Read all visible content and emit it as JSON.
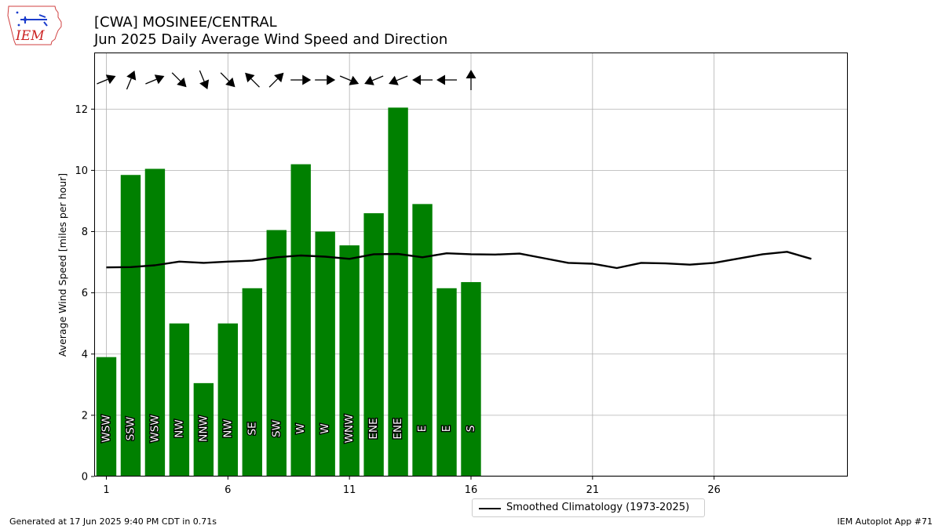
{
  "header": {
    "title_line1": "[CWA] MOSINEE/CENTRAL",
    "title_line2": "Jun 2025 Daily Average Wind Speed and Direction"
  },
  "logo": {
    "text": "IEM",
    "icon": "iowa-state-outline-icon"
  },
  "footer": {
    "left": "Generated at 17 Jun 2025 9:40 PM CDT in 0.71s",
    "right": "IEM Autoplot App #71"
  },
  "legend": {
    "climatology_label": "Smoothed Climatology (1973-2025)"
  },
  "colors": {
    "bar": "#008000",
    "climatology": "#000000",
    "grid": "#b0b0b0"
  },
  "chart_data": {
    "type": "bar",
    "ylabel": "Average Wind Speed [miles per hour]",
    "xlabel": "",
    "xlim": [
      0.5,
      31.5
    ],
    "ylim": [
      0,
      13.85
    ],
    "xticks": [
      1,
      6,
      11,
      16,
      21,
      26
    ],
    "yticks": [
      0,
      2,
      4,
      6,
      8,
      10,
      12
    ],
    "grid": true,
    "legend_position": "bottom-center",
    "days": [
      1,
      2,
      3,
      4,
      5,
      6,
      7,
      8,
      9,
      10,
      11,
      12,
      13,
      14,
      15,
      16
    ],
    "speeds": [
      3.9,
      9.85,
      10.05,
      5.0,
      3.05,
      5.0,
      6.15,
      8.05,
      10.2,
      8.0,
      7.55,
      8.6,
      12.05,
      8.9,
      6.15,
      6.35
    ],
    "directions": [
      "WSW",
      "SSW",
      "WSW",
      "NW",
      "NNW",
      "NW",
      "SE",
      "SW",
      "W",
      "W",
      "WNW",
      "ENE",
      "ENE",
      "E",
      "E",
      "S"
    ],
    "direction_degrees": [
      247.5,
      202.5,
      247.5,
      315,
      337.5,
      315,
      135,
      225,
      270,
      270,
      292.5,
      67.5,
      67.5,
      90,
      90,
      180
    ],
    "climatology": {
      "name": "Smoothed Climatology (1973-2025)",
      "x": [
        1,
        2,
        3,
        4,
        5,
        6,
        7,
        8,
        9,
        10,
        11,
        12,
        13,
        14,
        15,
        16,
        17,
        18,
        19,
        20,
        21,
        22,
        23,
        24,
        25,
        26,
        27,
        28,
        29,
        30
      ],
      "y": [
        6.83,
        6.84,
        6.9,
        7.02,
        6.98,
        7.02,
        7.05,
        7.16,
        7.22,
        7.18,
        7.11,
        7.26,
        7.27,
        7.16,
        7.29,
        7.26,
        7.25,
        7.28,
        7.13,
        6.98,
        6.95,
        6.81,
        6.98,
        6.96,
        6.92,
        6.98,
        7.12,
        7.26,
        7.34,
        7.11
      ]
    }
  }
}
